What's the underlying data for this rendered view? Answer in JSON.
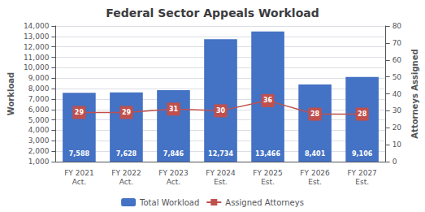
{
  "chart_data": {
    "type": "bar",
    "title": "Federal Sector Appeals Workload",
    "categories": [
      "FY 2021\nAct.",
      "FY 2022\nAct.",
      "FY 2023\nAct.",
      "FY 2024\nEst.",
      "FY 2025\nEst.",
      "FY 2026\nEst.",
      "FY 2027\nEst."
    ],
    "series": [
      {
        "name": "Total Workload",
        "type": "bar",
        "color": "#4472C4",
        "values": [
          7588,
          7628,
          7846,
          12734,
          13466,
          8401,
          9106
        ],
        "value_labels": [
          "7,588",
          "7,628",
          "7,846",
          "12,734",
          "13,466",
          "8,401",
          "9,106"
        ],
        "data_labels": true
      },
      {
        "name": "Assigned Attorneys",
        "type": "line",
        "axis": "y2",
        "color": "#C0504D",
        "marker": "square",
        "values": [
          29,
          29,
          31,
          30,
          36,
          28,
          28
        ],
        "data_labels": true
      }
    ],
    "ylabel": "Workload",
    "y2label": "Attorneys Assigned",
    "ylim": [
      1000,
      14000
    ],
    "yticks": [
      {
        "value": 1000,
        "label": "1,000"
      },
      {
        "value": 2000,
        "label": "2,000"
      },
      {
        "value": 3000,
        "label": "3,000"
      },
      {
        "value": 4000,
        "label": "4,000"
      },
      {
        "value": 5000,
        "label": "5,000"
      },
      {
        "value": 6000,
        "label": "6,000"
      },
      {
        "value": 7000,
        "label": "7,000"
      },
      {
        "value": 8000,
        "label": "8,000"
      },
      {
        "value": 9000,
        "label": "9,000"
      },
      {
        "value": 10000,
        "label": "10,000"
      },
      {
        "value": 11000,
        "label": "11,000"
      },
      {
        "value": 12000,
        "label": "12,000"
      },
      {
        "value": 13000,
        "label": "13,000"
      },
      {
        "value": 14000,
        "label": "14,000"
      }
    ],
    "y2lim": [
      0,
      80
    ],
    "y2ticks": [
      0,
      10,
      20,
      30,
      40,
      50,
      60,
      70,
      80
    ],
    "grid": true,
    "legend": "bottom"
  }
}
